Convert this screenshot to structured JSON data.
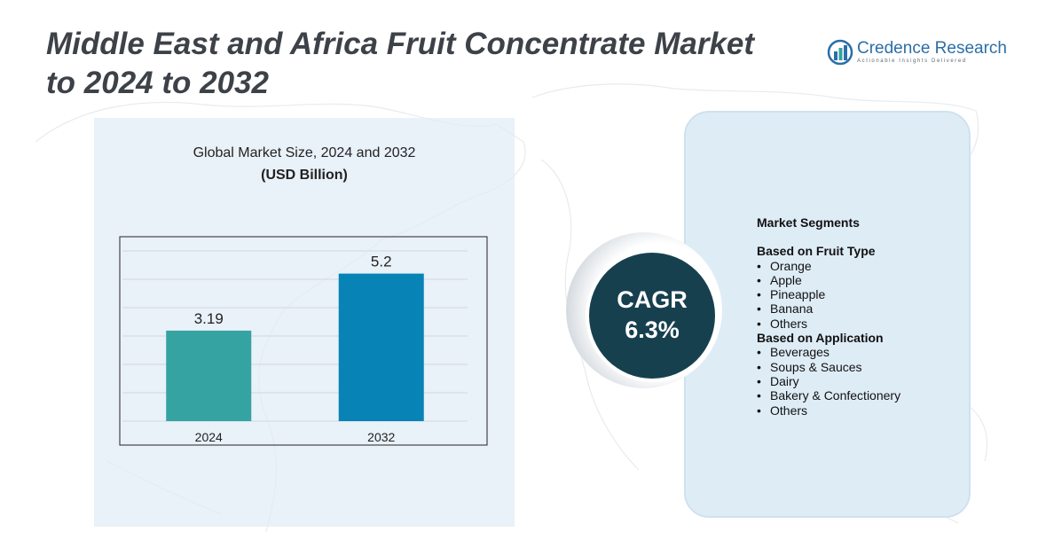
{
  "header": {
    "title_line1": "Middle East and Africa Fruit Concentrate Market",
    "title_line2": "to 2024 to 2032"
  },
  "logo": {
    "name": "Credence Research",
    "tagline": "Actionable Insights Delivered",
    "icon": "bar-chart-logo-icon"
  },
  "chart_data": {
    "type": "bar",
    "title": "Global Market Size, 2024 and 2032",
    "subtitle": "(USD Billion)",
    "categories": [
      "2024",
      "2032"
    ],
    "values": [
      3.19,
      5.2
    ],
    "value_labels": [
      "3.19",
      "5.2"
    ],
    "colors": [
      "#35a3a1",
      "#0883b6"
    ],
    "ylim": [
      0,
      6
    ],
    "grid": true,
    "legend": "none"
  },
  "cagr": {
    "label": "CAGR",
    "value": "6.3%"
  },
  "segments": {
    "heading": "Market Segments",
    "groups": [
      {
        "title": "Based on Fruit Type",
        "items": [
          "Orange",
          "Apple",
          "Pineapple",
          "Banana",
          "Others"
        ]
      },
      {
        "title": "Based on Application",
        "items": [
          "Beverages",
          "Soups & Sauces",
          "Dairy",
          "Bakery & Confectionery",
          "Others"
        ]
      }
    ]
  },
  "colors": {
    "title": "#3d4148",
    "accent": "#17404f",
    "panel": "#dbeaf5"
  }
}
